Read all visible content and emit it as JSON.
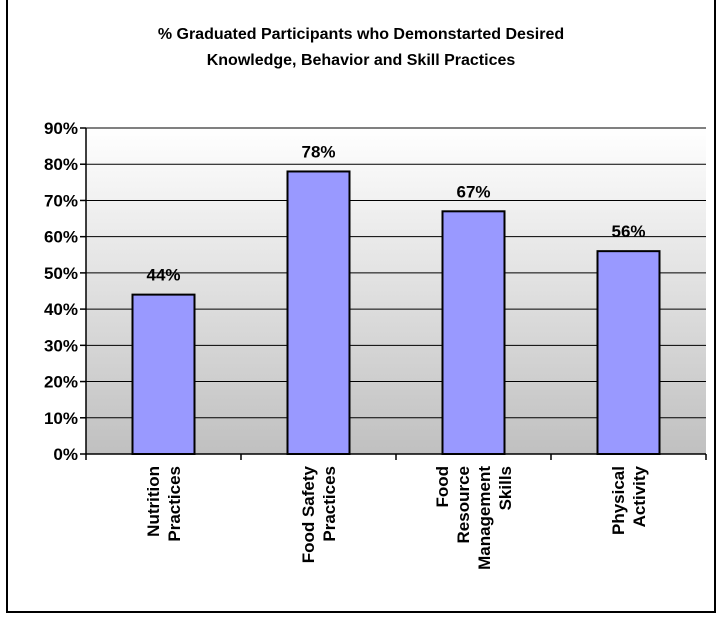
{
  "chart_data": {
    "type": "bar",
    "title": [
      "% Graduated Participants who Demonstarted Desired",
      "Knowledge, Behavior and Skill  Practices"
    ],
    "categories": [
      [
        "Nutrition",
        "Practices"
      ],
      [
        "Food Safety",
        "Practices"
      ],
      [
        "Food",
        "Resource",
        "Management",
        "Skills"
      ],
      [
        "Physical",
        "Activity"
      ]
    ],
    "values": [
      44,
      78,
      67,
      56
    ],
    "data_labels": [
      "44%",
      "78%",
      "67%",
      "56%"
    ],
    "ylim": [
      0,
      90
    ],
    "yticks": [
      0,
      10,
      20,
      30,
      40,
      50,
      60,
      70,
      80,
      90
    ],
    "ytick_labels": [
      "0%",
      "10%",
      "20%",
      "30%",
      "40%",
      "50%",
      "60%",
      "70%",
      "80%",
      "90%"
    ],
    "xlabel": "",
    "ylabel": "",
    "grid": true,
    "colors": {
      "bar_fill": "#9999ff",
      "bar_stroke": "#000000",
      "plot_top": "#ffffff",
      "plot_bottom": "#c0c0c0",
      "grid": "#000000"
    }
  }
}
